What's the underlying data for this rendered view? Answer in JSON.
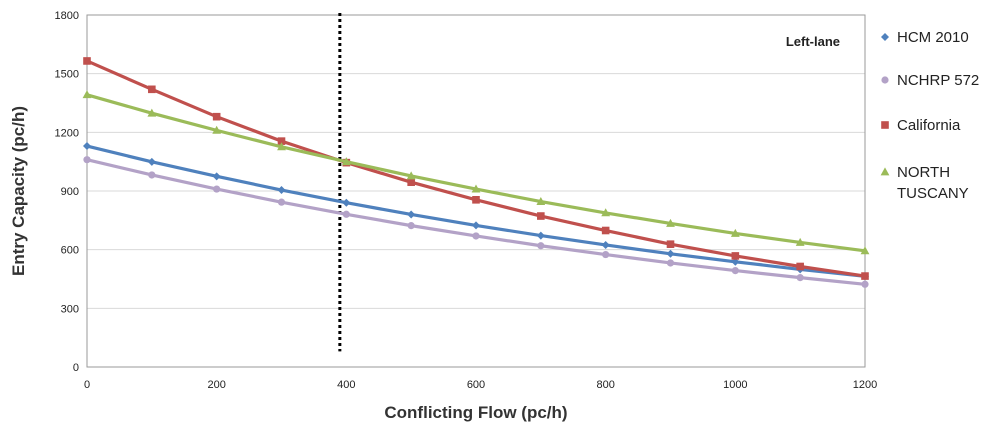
{
  "chart_data": {
    "type": "line",
    "xlabel": "Conflicting Flow (pc/h)",
    "ylabel": "Entry Capacity (pc/h)",
    "xlim": [
      0,
      1200
    ],
    "ylim": [
      0,
      1800
    ],
    "xticks": [
      0,
      200,
      400,
      600,
      800,
      1000,
      1200
    ],
    "yticks": [
      0,
      300,
      600,
      900,
      1200,
      1500,
      1800
    ],
    "x": [
      0,
      100,
      200,
      300,
      400,
      500,
      600,
      700,
      800,
      900,
      1000,
      1100,
      1200
    ],
    "series": [
      {
        "name": "HCM 2010",
        "color": "#4f81bd",
        "marker": "diamond",
        "values": [
          1130,
          1049,
          975,
          905,
          840,
          780,
          724,
          672,
          624,
          579,
          538,
          499,
          464
        ]
      },
      {
        "name": "NCHRP 572",
        "color": "#b3a2c7",
        "marker": "circle",
        "values": [
          1060,
          982,
          910,
          843,
          781,
          723,
          670,
          620,
          575,
          532,
          493,
          457,
          423
        ]
      },
      {
        "name": "California",
        "color": "#c0504d",
        "marker": "square",
        "values": [
          1565,
          1420,
          1280,
          1155,
          1045,
          945,
          855,
          772,
          698,
          628,
          568,
          514,
          465
        ]
      },
      {
        "name": "NORTH TUSCANY",
        "color": "#9bbb59",
        "marker": "triangle",
        "values": [
          1392,
          1298,
          1210,
          1126,
          1050,
          977,
          910,
          846,
          788,
          734,
          683,
          637,
          594
        ]
      }
    ],
    "reference_line": {
      "x": 390,
      "style": "dotted",
      "color": "#000000"
    },
    "annotation": "Left-lane",
    "grid": "horizontal",
    "legend_position": "right"
  }
}
